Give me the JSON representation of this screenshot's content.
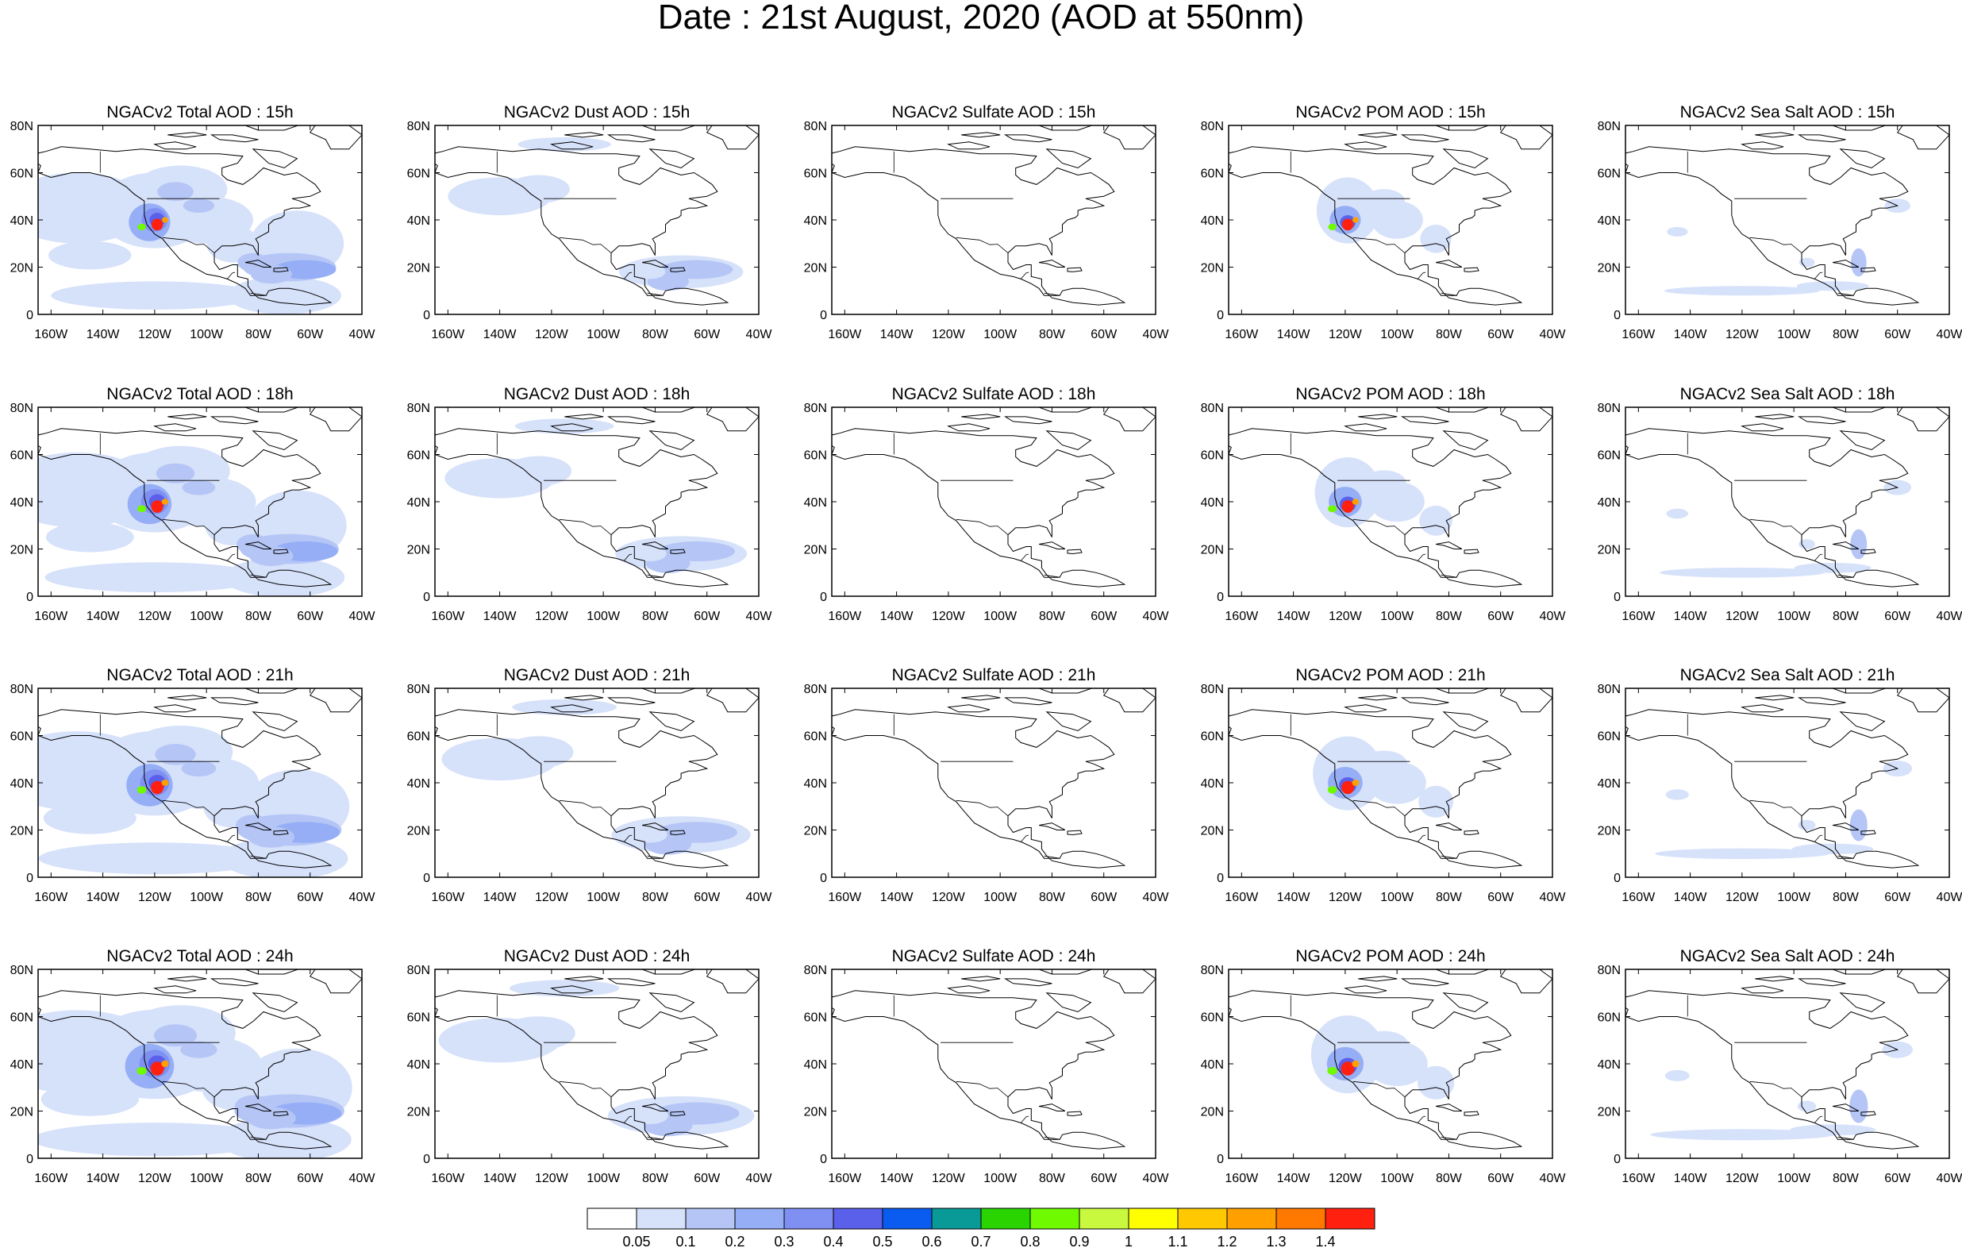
{
  "title": "Date : 21st August, 2020 (AOD at 550nm)",
  "columns": [
    {
      "key": "total",
      "titles": [
        "NGACv2 Total AOD : 15h",
        "NGACv2 Total AOD : 18h",
        "NGACv2 Total AOD : 21h",
        "NGACv2 Total AOD : 24h"
      ]
    },
    {
      "key": "dust",
      "titles": [
        "NGACv2 Dust AOD : 15h",
        "NGACv2 Dust AOD : 18h",
        "NGACv2 Dust AOD : 21h",
        "NGACv2 Dust AOD : 24h"
      ]
    },
    {
      "key": "sulfate",
      "titles": [
        "NGACv2 Sulfate AOD : 15h",
        "NGACv2 Sulfate AOD : 18h",
        "NGACv2 Sulfate AOD : 21h",
        "NGACv2 Sulfate AOD : 24h"
      ]
    },
    {
      "key": "pom",
      "titles": [
        "NGACv2 POM AOD : 15h",
        "NGACv2 POM AOD : 18h",
        "NGACv2 POM AOD : 21h",
        "NGACv2 POM AOD : 24h"
      ]
    },
    {
      "key": "seasalt",
      "titles": [
        "NGACv2 Sea Salt AOD : 15h",
        "NGACv2 Sea Salt AOD : 18h",
        "NGACv2 Sea Salt AOD : 21h",
        "NGACv2 Sea Salt  AOD : 24h"
      ]
    }
  ],
  "lon_ticks": [
    "160W",
    "140W",
    "120W",
    "100W",
    "80W",
    "60W",
    "40W"
  ],
  "lat_ticks": [
    "0",
    "20N",
    "40N",
    "60N",
    "80N"
  ],
  "colorbar": {
    "labels": [
      "0.05",
      "0.1",
      "0.2",
      "0.3",
      "0.4",
      "0.5",
      "0.6",
      "0.7",
      "0.8",
      "0.9",
      "1",
      "1.1",
      "1.2",
      "1.3",
      "1.4"
    ],
    "colors": [
      "#ffffff",
      "#d6e1fa",
      "#b5c6f6",
      "#95aef6",
      "#7f90f2",
      "#5a60ea",
      "#0a5cf0",
      "#099996",
      "#2ad400",
      "#6ffa00",
      "#c8f93f",
      "#ffff00",
      "#ffc800",
      "#ffa000",
      "#ff7800",
      "#ff2010"
    ]
  }
}
